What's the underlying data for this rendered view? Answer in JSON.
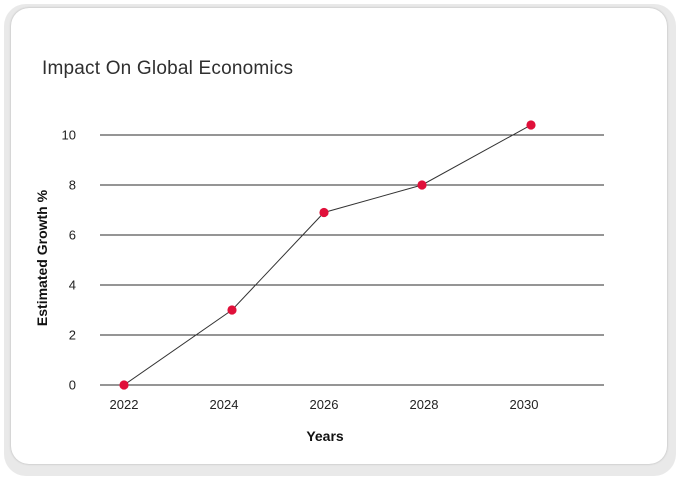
{
  "chart_data": {
    "type": "line",
    "title": "Impact On Global Economics",
    "xlabel": "Years",
    "ylabel": "Estimated Growth %",
    "categories": [
      "2022",
      "2024",
      "2026",
      "2028",
      "2030"
    ],
    "series": [
      {
        "values": [
          0,
          3,
          6.9,
          8,
          10.4
        ]
      }
    ],
    "yticks": [
      "0",
      "2",
      "4",
      "6",
      "8",
      "10"
    ],
    "ylim": [
      0,
      10.4
    ],
    "grid": "horizontal",
    "colors": {
      "line": "#333333",
      "marker": "#e0103a",
      "grid": "#2b2b2b"
    }
  }
}
